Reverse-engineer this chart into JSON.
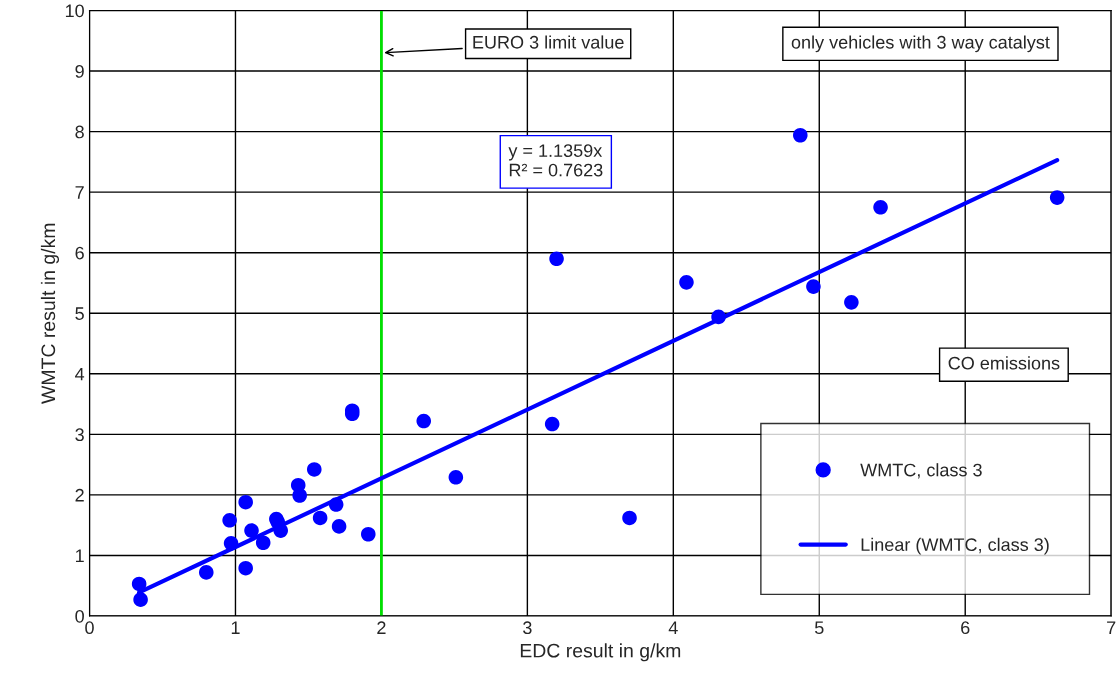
{
  "chart_data": {
    "type": "scatter",
    "xlabel": "EDC result in g/km",
    "ylabel": "WMTC result in g/km",
    "xlim": [
      0,
      7
    ],
    "xticks": [
      0,
      1,
      2,
      3,
      4,
      5,
      6,
      7
    ],
    "ylim": [
      0,
      10
    ],
    "yticks": [
      0,
      1,
      2,
      3,
      4,
      5,
      6,
      7,
      8,
      9,
      10
    ],
    "grid": true,
    "legend": "bottom right",
    "marker": "circle",
    "series": [
      {
        "name": "WMTC, class 3",
        "color": "#0000ff",
        "x": [
          0.34,
          0.35,
          0.8,
          0.96,
          0.97,
          1.07,
          1.07,
          1.11,
          1.19,
          1.28,
          1.29,
          1.31,
          1.43,
          1.44,
          1.54,
          1.58,
          1.69,
          1.71,
          1.8,
          1.8,
          1.91,
          2.29,
          2.51,
          3.17,
          3.2,
          3.7,
          4.09,
          4.31,
          4.87,
          4.96,
          5.22,
          5.42,
          6.63
        ],
        "values": [
          0.53,
          0.27,
          0.72,
          1.58,
          1.2,
          1.88,
          0.79,
          1.41,
          1.21,
          1.6,
          1.55,
          1.41,
          2.16,
          1.99,
          2.42,
          1.62,
          1.84,
          1.48,
          3.39,
          3.34,
          1.35,
          3.22,
          2.29,
          3.17,
          5.9,
          1.62,
          5.51,
          4.94,
          7.94,
          5.44,
          5.18,
          6.75,
          6.91
        ]
      },
      {
        "name": "Linear (WMTC, class 3)",
        "color": "#0000ff",
        "type": "line",
        "marker": "none",
        "x": [
          0.34,
          6.63
        ],
        "values": [
          0.39,
          7.53
        ]
      }
    ],
    "ref_lines": [
      {
        "axis": "x",
        "value": 2,
        "label": "EURO 3 limit value",
        "color": "#00e000"
      }
    ],
    "annotations": [
      "y = 1.1359x\nR² = 0.7623",
      "only vehicles with 3 way catalyst",
      "CO emissions"
    ]
  }
}
